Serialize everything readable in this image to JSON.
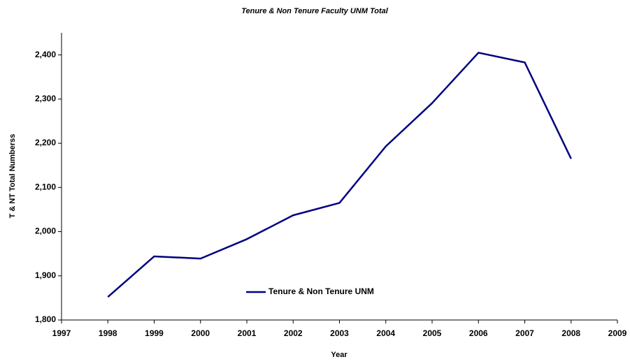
{
  "chart_data": {
    "type": "line",
    "title": "Tenure & Non Tenure Faculty UNM Total",
    "xlabel": "Year",
    "ylabel": "T & NT Total Numberss",
    "x": [
      1998,
      1999,
      2000,
      2001,
      2002,
      2003,
      2004,
      2005,
      2006,
      2007,
      2008
    ],
    "series": [
      {
        "name": "Tenure & Non Tenure UNM",
        "color": "#000080",
        "values": [
          1852,
          1944,
          1939,
          1983,
          2037,
          2065,
          2193,
          2291,
          2405,
          2383,
          2165
        ]
      }
    ],
    "xlim": [
      1997,
      2009
    ],
    "xticks": [
      1997,
      1998,
      1999,
      2000,
      2001,
      2002,
      2003,
      2004,
      2005,
      2006,
      2007,
      2008,
      2009
    ],
    "ylim": [
      1800,
      2450
    ],
    "yticks": [
      {
        "value": 1800,
        "label": "1,800"
      },
      {
        "value": 1900,
        "label": "1,900"
      },
      {
        "value": 2000,
        "label": "2,000"
      },
      {
        "value": 2100,
        "label": "2,100"
      },
      {
        "value": 2200,
        "label": "2,200"
      },
      {
        "value": 2300,
        "label": "2,300"
      },
      {
        "value": 2400,
        "label": "2,400"
      }
    ],
    "grid": false,
    "legend": "center"
  }
}
